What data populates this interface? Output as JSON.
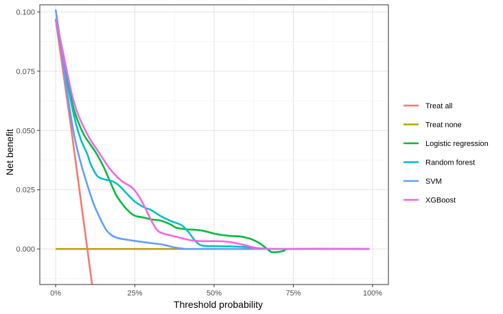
{
  "chart_data": {
    "type": "line",
    "title": "",
    "xlabel": "Threshold probability",
    "ylabel": "Net benefit",
    "xlim": [
      -0.05,
      1.05
    ],
    "ylim": [
      -0.015,
      0.103
    ],
    "grid": true,
    "legend_position": "right",
    "x_ticks": [
      {
        "value": 0,
        "label": "0%"
      },
      {
        "value": 0.25,
        "label": "25%"
      },
      {
        "value": 0.5,
        "label": "50%"
      },
      {
        "value": 0.75,
        "label": "75%"
      },
      {
        "value": 1.0,
        "label": "100%"
      }
    ],
    "y_ticks": [
      {
        "value": 0.0,
        "label": "0.000"
      },
      {
        "value": 0.025,
        "label": "0.025"
      },
      {
        "value": 0.05,
        "label": "0.050"
      },
      {
        "value": 0.075,
        "label": "0.075"
      },
      {
        "value": 0.1,
        "label": "0.100"
      }
    ],
    "series": [
      {
        "name": "Treat all",
        "color": "#F8766D",
        "points": [
          [
            0,
            0.097
          ],
          [
            0.05,
            0.05
          ],
          [
            0.1,
            0.0
          ],
          [
            0.115,
            -0.015
          ]
        ]
      },
      {
        "name": "Treat none",
        "color": "#B79F00",
        "points": [
          [
            0,
            0
          ],
          [
            0.99,
            0
          ]
        ]
      },
      {
        "name": "Logistic regression",
        "color": "#00BA38",
        "points": [
          [
            0,
            0.097
          ],
          [
            0.02,
            0.085
          ],
          [
            0.05,
            0.063
          ],
          [
            0.07,
            0.054
          ],
          [
            0.09,
            0.048
          ],
          [
            0.11,
            0.044
          ],
          [
            0.13,
            0.04
          ],
          [
            0.15,
            0.035
          ],
          [
            0.17,
            0.029
          ],
          [
            0.19,
            0.023
          ],
          [
            0.21,
            0.019
          ],
          [
            0.23,
            0.016
          ],
          [
            0.25,
            0.014
          ],
          [
            0.28,
            0.0132
          ],
          [
            0.3,
            0.0125
          ],
          [
            0.33,
            0.012
          ],
          [
            0.36,
            0.0105
          ],
          [
            0.38,
            0.009
          ],
          [
            0.4,
            0.0085
          ],
          [
            0.42,
            0.0082
          ],
          [
            0.44,
            0.0081
          ],
          [
            0.46,
            0.0078
          ],
          [
            0.48,
            0.0072
          ],
          [
            0.5,
            0.0065
          ],
          [
            0.52,
            0.006
          ],
          [
            0.55,
            0.0055
          ],
          [
            0.58,
            0.0053
          ],
          [
            0.6,
            0.0048
          ],
          [
            0.62,
            0.004
          ],
          [
            0.64,
            0.0027
          ],
          [
            0.66,
            0.0008
          ],
          [
            0.68,
            -0.0012
          ],
          [
            0.7,
            -0.0013
          ],
          [
            0.72,
            -0.0008
          ],
          [
            0.75,
            0.0
          ],
          [
            0.99,
            0.0
          ]
        ]
      },
      {
        "name": "Random forest",
        "color": "#00BFC4",
        "points": [
          [
            0,
            0.097
          ],
          [
            0.02,
            0.083
          ],
          [
            0.04,
            0.068
          ],
          [
            0.06,
            0.055
          ],
          [
            0.08,
            0.046
          ],
          [
            0.1,
            0.04
          ],
          [
            0.11,
            0.036
          ],
          [
            0.13,
            0.031
          ],
          [
            0.15,
            0.0295
          ],
          [
            0.18,
            0.0285
          ],
          [
            0.2,
            0.0268
          ],
          [
            0.22,
            0.024
          ],
          [
            0.25,
            0.02
          ],
          [
            0.28,
            0.0175
          ],
          [
            0.3,
            0.0165
          ],
          [
            0.33,
            0.014
          ],
          [
            0.36,
            0.012
          ],
          [
            0.38,
            0.011
          ],
          [
            0.4,
            0.0098
          ],
          [
            0.42,
            0.007
          ],
          [
            0.44,
            0.0035
          ],
          [
            0.46,
            0.0015
          ],
          [
            0.5,
            0.0012
          ],
          [
            0.55,
            0.0011
          ],
          [
            0.6,
            0.0008
          ],
          [
            0.65,
            0.0002
          ],
          [
            0.7,
            0.0
          ],
          [
            0.99,
            0.0
          ]
        ]
      },
      {
        "name": "SVM",
        "color": "#619CFF",
        "points": [
          [
            0,
            0.101
          ],
          [
            0.02,
            0.083
          ],
          [
            0.04,
            0.063
          ],
          [
            0.06,
            0.047
          ],
          [
            0.08,
            0.036
          ],
          [
            0.1,
            0.027
          ],
          [
            0.12,
            0.019
          ],
          [
            0.14,
            0.013
          ],
          [
            0.16,
            0.008
          ],
          [
            0.18,
            0.0055
          ],
          [
            0.2,
            0.0045
          ],
          [
            0.23,
            0.0038
          ],
          [
            0.26,
            0.0032
          ],
          [
            0.3,
            0.0025
          ],
          [
            0.34,
            0.0018
          ],
          [
            0.37,
            0.0008
          ],
          [
            0.4,
            0.0002
          ],
          [
            0.45,
            0.0
          ],
          [
            0.99,
            0.0
          ]
        ]
      },
      {
        "name": "XGBoost",
        "color": "#F564E3",
        "points": [
          [
            0,
            0.097
          ],
          [
            0.02,
            0.085
          ],
          [
            0.05,
            0.066
          ],
          [
            0.07,
            0.057
          ],
          [
            0.09,
            0.051
          ],
          [
            0.11,
            0.046
          ],
          [
            0.13,
            0.042
          ],
          [
            0.15,
            0.038
          ],
          [
            0.17,
            0.034
          ],
          [
            0.19,
            0.031
          ],
          [
            0.21,
            0.0285
          ],
          [
            0.24,
            0.026
          ],
          [
            0.26,
            0.0228
          ],
          [
            0.28,
            0.018
          ],
          [
            0.3,
            0.0125
          ],
          [
            0.32,
            0.008
          ],
          [
            0.34,
            0.0065
          ],
          [
            0.37,
            0.0055
          ],
          [
            0.4,
            0.0045
          ],
          [
            0.43,
            0.0036
          ],
          [
            0.46,
            0.0033
          ],
          [
            0.5,
            0.0033
          ],
          [
            0.53,
            0.0032
          ],
          [
            0.56,
            0.0027
          ],
          [
            0.6,
            0.0015
          ],
          [
            0.63,
            0.0005
          ],
          [
            0.66,
            0.0
          ],
          [
            0.99,
            0.0
          ]
        ]
      }
    ]
  }
}
